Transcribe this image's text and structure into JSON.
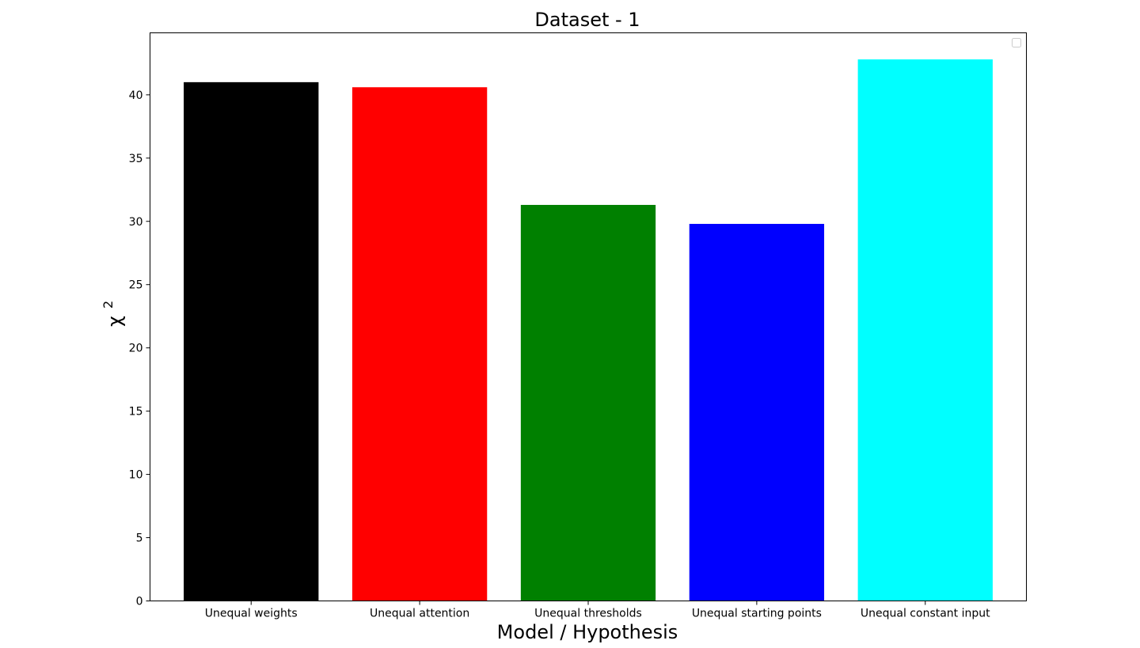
{
  "chart_data": {
    "type": "bar",
    "title": "Dataset - 1",
    "xlabel": "Model / Hypothesis",
    "ylabel": "χ",
    "ylabel_superscript": "2",
    "categories": [
      "Unequal weights",
      "Unequal attention",
      "Unequal thresholds",
      "Unequal starting points",
      "Unequal constant input"
    ],
    "values": [
      41.0,
      40.6,
      31.3,
      29.8,
      42.8
    ],
    "colors": [
      "#000000",
      "#ff0000",
      "#008000",
      "#0000ff",
      "#00ffff"
    ],
    "ylim": [
      0,
      44.9
    ],
    "yticks": [
      0,
      5,
      10,
      15,
      20,
      25,
      30,
      35,
      40
    ],
    "grid": false,
    "legend": {
      "placement": "top-right",
      "entries": []
    }
  }
}
